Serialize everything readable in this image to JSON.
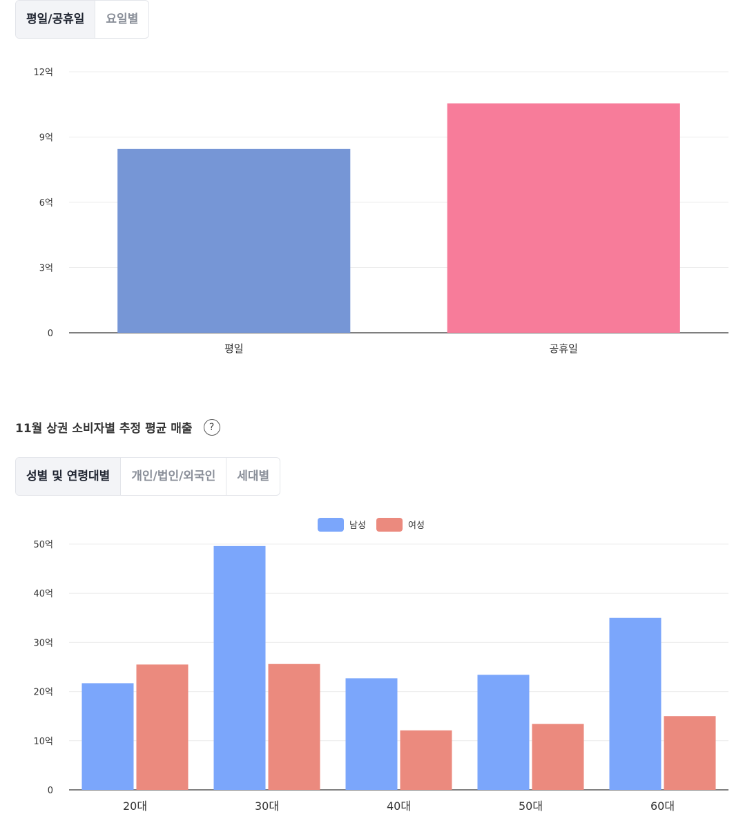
{
  "tabs1": {
    "items": [
      "평일/공휴일",
      "요일별"
    ],
    "active": 0
  },
  "section2": {
    "title": "11월 상권 소비자별 추정 평균 매출",
    "help_icon": "question-circle-icon"
  },
  "tabs2": {
    "items": [
      "성별 및 연령대별",
      "개인/법인/외국인",
      "세대별"
    ],
    "active": 0
  },
  "chart_data": [
    {
      "type": "bar",
      "categories": [
        "평일",
        "공휴일"
      ],
      "values": [
        8.45,
        10.55
      ],
      "unit": "억",
      "yticks": [
        "0",
        "3억",
        "6억",
        "9억",
        "12억"
      ],
      "ylim": [
        0,
        12
      ],
      "colors": [
        "#7696d6",
        "#f77c9a"
      ],
      "grid": true
    },
    {
      "type": "bar",
      "categories": [
        "20대",
        "30대",
        "40대",
        "50대",
        "60대"
      ],
      "series": [
        {
          "name": "남성",
          "values": [
            21.7,
            49.6,
            22.7,
            23.4,
            35.0
          ],
          "color": "#7ba6fb"
        },
        {
          "name": "여성",
          "values": [
            25.5,
            25.6,
            12.1,
            13.4,
            15.0
          ],
          "color": "#eb8a7e"
        }
      ],
      "unit": "억",
      "yticks": [
        "0",
        "10억",
        "20억",
        "30억",
        "40억",
        "50억"
      ],
      "ylim": [
        0,
        50
      ],
      "legend": "top-center",
      "grid": true
    }
  ]
}
